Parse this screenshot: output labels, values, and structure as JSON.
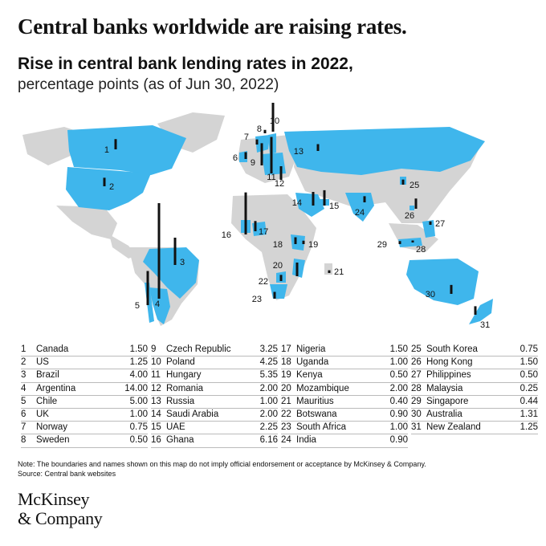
{
  "headline": "Central banks worldwide are raising rates.",
  "subtitle": "Rise in central bank lending rates in 2022,",
  "subtitle_unit": "percentage points (as of Jun 30, 2022)",
  "colors": {
    "highlight": "#3fb6ec",
    "land": "#d4d4d4",
    "bar": "#111111"
  },
  "chart_data": {
    "type": "map",
    "unit": "percentage points",
    "series": [
      {
        "id": "1",
        "country": "Canada",
        "value": 1.5
      },
      {
        "id": "2",
        "country": "US",
        "value": 1.25
      },
      {
        "id": "3",
        "country": "Brazil",
        "value": 4.0
      },
      {
        "id": "4",
        "country": "Argentina",
        "value": 14.0
      },
      {
        "id": "5",
        "country": "Chile",
        "value": 5.0
      },
      {
        "id": "6",
        "country": "UK",
        "value": 1.0
      },
      {
        "id": "7",
        "country": "Norway",
        "value": 0.75
      },
      {
        "id": "8",
        "country": "Sweden",
        "value": 0.5
      },
      {
        "id": "9",
        "country": "Czech Republic",
        "value": 3.25
      },
      {
        "id": "10",
        "country": "Poland",
        "value": 4.25
      },
      {
        "id": "11",
        "country": "Hungary",
        "value": 5.35
      },
      {
        "id": "12",
        "country": "Romania",
        "value": 2.0
      },
      {
        "id": "13",
        "country": "Russia",
        "value": 1.0
      },
      {
        "id": "14",
        "country": "Saudi Arabia",
        "value": 2.0
      },
      {
        "id": "15",
        "country": "UAE",
        "value": 2.25
      },
      {
        "id": "16",
        "country": "Ghana",
        "value": 6.16
      },
      {
        "id": "17",
        "country": "Nigeria",
        "value": 1.5
      },
      {
        "id": "18",
        "country": "Uganda",
        "value": 1.0
      },
      {
        "id": "19",
        "country": "Kenya",
        "value": 0.5
      },
      {
        "id": "20",
        "country": "Mozambique",
        "value": 2.0
      },
      {
        "id": "21",
        "country": "Mauritius",
        "value": 0.4
      },
      {
        "id": "22",
        "country": "Botswana",
        "value": 0.9
      },
      {
        "id": "23",
        "country": "South Africa",
        "value": 1.0
      },
      {
        "id": "24",
        "country": "India",
        "value": 0.9
      },
      {
        "id": "25",
        "country": "South Korea",
        "value": 0.75
      },
      {
        "id": "26",
        "country": "Hong Kong",
        "value": 1.5
      },
      {
        "id": "27",
        "country": "Philippines",
        "value": 0.5
      },
      {
        "id": "28",
        "country": "Malaysia",
        "value": 0.25
      },
      {
        "id": "29",
        "country": "Singapore",
        "value": 0.44
      },
      {
        "id": "30",
        "country": "Australia",
        "value": 1.31
      },
      {
        "id": "31",
        "country": "New Zealand",
        "value": 1.25
      }
    ]
  },
  "legend_values": [
    "1.50",
    "1.25",
    "4.00",
    "14.00",
    "5.00",
    "1.00",
    "0.75",
    "0.50",
    "3.25",
    "4.25",
    "5.35",
    "2.00",
    "1.00",
    "2.00",
    "2.25",
    "6.16",
    "1.50",
    "1.00",
    "0.50",
    "2.00",
    "0.40",
    "0.90",
    "1.00",
    "0.90",
    "0.75",
    "1.50",
    "0.50",
    "0.25",
    "0.44",
    "1.31",
    "1.25"
  ],
  "note": "Note: The boundaries and names shown on this map do not imply official endorsement or acceptance by McKinsey & Company.",
  "source": "Source: Central bank websites",
  "logo": {
    "line1": "McKinsey",
    "line2": "& Company"
  }
}
